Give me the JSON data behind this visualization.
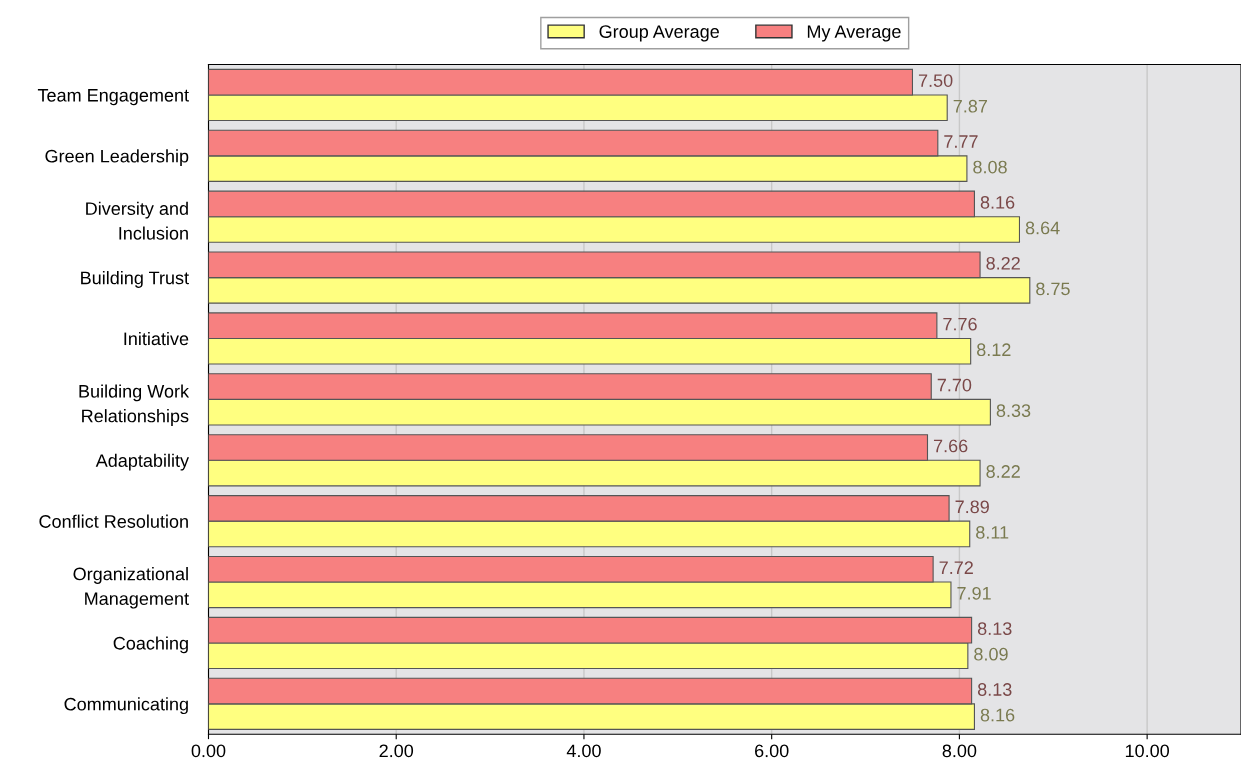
{
  "chart_data": {
    "type": "bar",
    "orientation": "horizontal",
    "categories": [
      "Team Engagement",
      "Green Leadership",
      "Diversity and\nInclusion",
      "Building Trust",
      "Initiative",
      "Building Work\nRelationships",
      "Adaptability",
      "Conflict Resolution",
      "Organizational\nManagement",
      "Coaching",
      "Communicating"
    ],
    "series": [
      {
        "name": "Group Average",
        "color": "#ffff80",
        "values": [
          7.87,
          8.08,
          8.64,
          8.75,
          8.12,
          8.33,
          8.22,
          8.11,
          7.91,
          8.09,
          8.16
        ],
        "value_labels": [
          "7.87",
          "8.08",
          "8.64",
          "8.75",
          "8.12",
          "8.33",
          "8.22",
          "8.11",
          "7.91",
          "8.09",
          "8.16"
        ]
      },
      {
        "name": "My Average",
        "color": "#f78080",
        "values": [
          7.5,
          7.77,
          8.16,
          8.22,
          7.76,
          7.7,
          7.66,
          7.89,
          7.72,
          8.13,
          8.13
        ],
        "value_labels": [
          "7.50",
          "7.77",
          "8.16",
          "8.22",
          "7.76",
          "7.70",
          "7.66",
          "7.89",
          "7.72",
          "8.13",
          "8.13"
        ]
      }
    ],
    "xlim": [
      0,
      11
    ],
    "xticks": [
      {
        "value": 0,
        "label": "0.00"
      },
      {
        "value": 2,
        "label": "2.00"
      },
      {
        "value": 4,
        "label": "4.00"
      },
      {
        "value": 6,
        "label": "6.00"
      },
      {
        "value": 8,
        "label": "8.00"
      },
      {
        "value": 10,
        "label": "10.00"
      }
    ],
    "grid": "x",
    "legend": "top"
  }
}
